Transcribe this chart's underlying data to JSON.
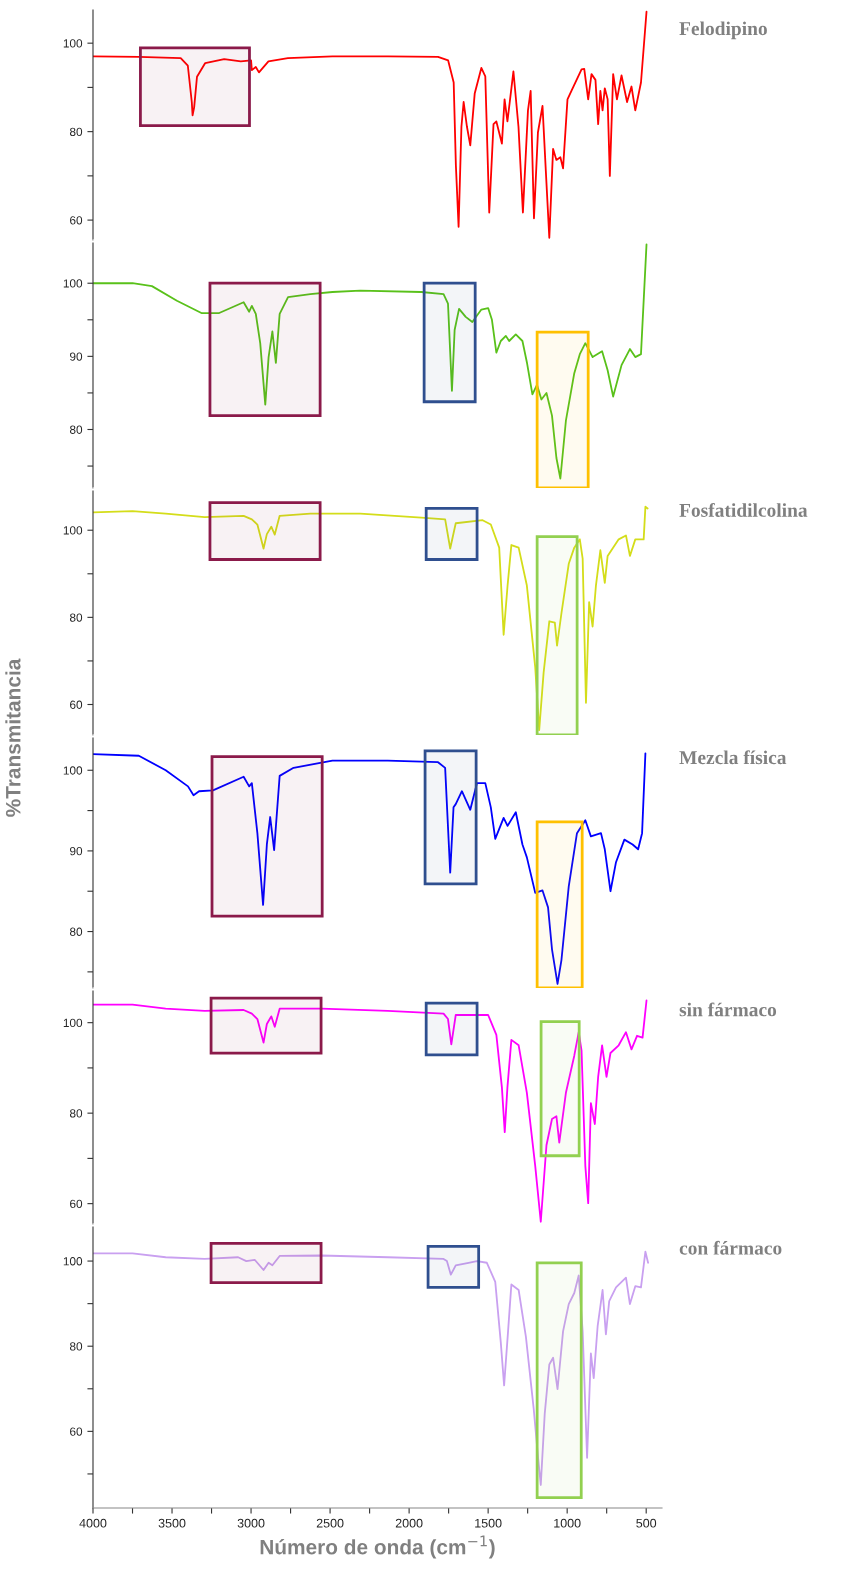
{
  "chart_data": [
    {
      "type": "line",
      "xlim": [
        4000,
        400
      ],
      "ylim": [
        55.5,
        107.5
      ],
      "yticks": [
        {
          "value": 60,
          "label": "60"
        },
        {
          "value": 70,
          "label": null
        },
        {
          "value": 80,
          "label": "80"
        },
        {
          "value": 90,
          "label": null
        },
        {
          "value": 100,
          "label": "100"
        }
      ],
      "tick_labels": "y",
      "series": [
        {
          "name": "Felodipino",
          "color": "#ff0000",
          "x": [
            4000,
            3710,
            3445,
            3400,
            3375,
            3370,
            3360,
            3342,
            3290,
            3170,
            3065,
            3000,
            2995,
            2970,
            2950,
            2890,
            2767,
            2485,
            2135,
            1817,
            1753,
            1718,
            1704,
            1687,
            1669,
            1655,
            1634,
            1613,
            1585,
            1543,
            1518,
            1493,
            1466,
            1448,
            1413,
            1396,
            1378,
            1340,
            1308,
            1280,
            1248,
            1231,
            1210,
            1185,
            1156,
            1135,
            1113,
            1089,
            1068,
            1043,
            1026,
            998,
            973,
            909,
            892,
            867,
            846,
            821,
            804,
            790,
            776,
            762,
            744,
            730,
            709,
            685,
            656,
            621,
            593,
            569,
            533,
            498
          ],
          "values": [
            97.0,
            96.9,
            96.6,
            94.9,
            86.7,
            83.7,
            85.5,
            92.4,
            95.5,
            96.4,
            95.9,
            96.1,
            93.9,
            94.6,
            93.4,
            95.9,
            96.6,
            97.0,
            97.0,
            96.9,
            96.1,
            91.1,
            72.3,
            58.5,
            81.1,
            86.7,
            81.1,
            76.9,
            88.6,
            94.4,
            92.5,
            61.7,
            81.7,
            82.3,
            77.3,
            87.3,
            82.3,
            93.6,
            81.1,
            61.7,
            84.8,
            89.2,
            60.4,
            79.8,
            85.8,
            71.1,
            56.0,
            76.1,
            73.6,
            74.2,
            71.7,
            87.3,
            89.2,
            94.1,
            94.2,
            87.3,
            93.0,
            91.7,
            81.7,
            89.2,
            84.8,
            89.8,
            87.3,
            70.0,
            93.0,
            87.3,
            92.7,
            86.7,
            90.2,
            84.8,
            91.1,
            107.1
          ]
        }
      ],
      "bands": [
        {
          "axis": "x",
          "from": 3700,
          "to": 3010,
          "color": "#8b1a4a"
        }
      ]
    },
    {
      "type": "line",
      "xlim": [
        4000,
        400
      ],
      "ylim": [
        72,
        105.5
      ],
      "yticks": [
        {
          "value": 75,
          "label": null
        },
        {
          "value": 80,
          "label": "80"
        },
        {
          "value": 85,
          "label": null
        },
        {
          "value": 90,
          "label": "90"
        },
        {
          "value": 95,
          "label": null
        },
        {
          "value": 100,
          "label": "100"
        }
      ],
      "tick_labels": "y",
      "series": [
        {
          "color": "#59c11a",
          "x": [
            4000,
            3750,
            3627,
            3469,
            3311,
            3205,
            3047,
            3012,
            2995,
            2970,
            2942,
            2910,
            2889,
            2865,
            2843,
            2819,
            2766,
            2625,
            2485,
            2309,
            1923,
            1782,
            1754,
            1729,
            1712,
            1684,
            1642,
            1600,
            1543,
            1500,
            1476,
            1448,
            1420,
            1388,
            1367,
            1325,
            1283,
            1255,
            1220,
            1191,
            1163,
            1131,
            1096,
            1068,
            1043,
            1008,
            955,
            920,
            885,
            839,
            779,
            744,
            709,
            656,
            603,
            569,
            533,
            498
          ],
          "values": [
            100,
            100,
            99.6,
            97.6,
            95.9,
            95.9,
            97.4,
            96.1,
            96.9,
            95.8,
            91.8,
            83.4,
            89.9,
            93.4,
            89.1,
            95.8,
            98.1,
            98.5,
            98.8,
            99.0,
            98.8,
            98.5,
            97.2,
            85.3,
            93.6,
            96.5,
            95.4,
            94.7,
            96.4,
            96.6,
            95.0,
            90.5,
            92.1,
            92.8,
            92.1,
            93.0,
            92.1,
            89.2,
            84.8,
            86.1,
            84.1,
            85.0,
            81.9,
            76.1,
            73.3,
            81.2,
            87.7,
            90.3,
            91.8,
            89.9,
            90.7,
            88.1,
            84.5,
            88.8,
            91.0,
            89.9,
            90.3,
            105.3
          ]
        }
      ],
      "bands": [
        {
          "axis": "x",
          "from": 3260,
          "to": 2563,
          "color": "#8b1a4a"
        },
        {
          "axis": "x",
          "from": 1905,
          "to": 1582,
          "color": "#2f4f8f"
        },
        {
          "axis": "x",
          "from": 1190,
          "to": 867,
          "color": "#ffc000"
        }
      ]
    },
    {
      "type": "line",
      "xlim": [
        4000,
        400
      ],
      "ylim": [
        53,
        109
      ],
      "yticks": [
        {
          "value": 60,
          "label": "60"
        },
        {
          "value": 70,
          "label": null
        },
        {
          "value": 80,
          "label": "80"
        },
        {
          "value": 90,
          "label": null
        },
        {
          "value": 100,
          "label": "100"
        }
      ],
      "tick_labels": "y",
      "series": [
        {
          "name": "Fosfatidilcolina",
          "color": "#d4dd1a",
          "x": [
            4000,
            3750,
            3540,
            3294,
            3047,
            2995,
            2960,
            2921,
            2900,
            2872,
            2850,
            2819,
            2625,
            2309,
            1923,
            1772,
            1740,
            1705,
            1535,
            1483,
            1430,
            1402,
            1377,
            1353,
            1307,
            1255,
            1202,
            1177,
            1149,
            1113,
            1078,
            1064,
            1036,
            990,
            955,
            920,
            902,
            881,
            861,
            839,
            818,
            790,
            762,
            744,
            674,
            628,
            603,
            569,
            516,
            505,
            491
          ],
          "values": [
            104.1,
            104.4,
            103.8,
            103.0,
            103.3,
            102.5,
            101.3,
            95.8,
            99.1,
            100.8,
            99.0,
            103.3,
            103.8,
            103.8,
            102.9,
            102.5,
            95.8,
            101.6,
            102.3,
            101.3,
            96.0,
            76.0,
            87.3,
            96.6,
            96.0,
            87.3,
            68.5,
            54.1,
            67.3,
            79.1,
            78.8,
            73.5,
            81.0,
            92.3,
            96.0,
            97.9,
            93.5,
            60.4,
            83.5,
            77.9,
            87.3,
            95.4,
            87.9,
            94.1,
            97.9,
            98.8,
            94.1,
            97.9,
            97.9,
            105.4,
            105.0
          ]
        }
      ],
      "bands": [
        {
          "axis": "x",
          "from": 3260,
          "to": 2563,
          "color": "#8b1a4a"
        },
        {
          "axis": "x",
          "from": 1892,
          "to": 1570,
          "color": "#2f4f8f"
        },
        {
          "axis": "x",
          "from": 1190,
          "to": 937,
          "color": "#92d050"
        }
      ]
    },
    {
      "type": "line",
      "xlim": [
        4000,
        400
      ],
      "ylim": [
        73,
        104
      ],
      "yticks": [
        {
          "value": 75,
          "label": null
        },
        {
          "value": 80,
          "label": "80"
        },
        {
          "value": 85,
          "label": null
        },
        {
          "value": 90,
          "label": "90"
        },
        {
          "value": 95,
          "label": null
        },
        {
          "value": 100,
          "label": "100"
        }
      ],
      "tick_labels": "y",
      "ylabel": "%Transmitancia",
      "series": [
        {
          "name": "Mezcla física",
          "color": "#0000ff",
          "x": [
            4000,
            3710,
            3540,
            3399,
            3364,
            3329,
            3241,
            3047,
            3012,
            2995,
            2960,
            2924,
            2900,
            2879,
            2854,
            2819,
            2731,
            2485,
            2135,
            1817,
            1772,
            1740,
            1719,
            1705,
            1666,
            1613,
            1571,
            1518,
            1483,
            1455,
            1402,
            1377,
            1325,
            1283,
            1255,
            1202,
            1156,
            1121,
            1096,
            1061,
            1036,
            990,
            938,
            885,
            850,
            786,
            762,
            726,
            691,
            638,
            586,
            551,
            526,
            505
          ],
          "values": [
            102.0,
            101.8,
            100.0,
            98.0,
            96.9,
            97.4,
            97.5,
            99.2,
            98.0,
            98.4,
            92.2,
            83.3,
            90.8,
            94.2,
            90.1,
            99.3,
            100.3,
            101.2,
            101.2,
            101.0,
            100.3,
            87.3,
            95.4,
            95.8,
            97.4,
            95.1,
            98.4,
            98.4,
            95.4,
            91.5,
            94.1,
            93.1,
            94.8,
            90.8,
            89.2,
            84.8,
            85.1,
            83.0,
            77.8,
            73.5,
            76.5,
            85.6,
            92.2,
            93.8,
            91.8,
            92.2,
            90.2,
            85.0,
            88.6,
            91.4,
            90.8,
            90.2,
            92.2,
            102.1
          ]
        }
      ],
      "bands": [
        {
          "axis": "x",
          "from": 3247,
          "to": 2550,
          "color": "#8b1a4a"
        },
        {
          "axis": "x",
          "from": 1899,
          "to": 1576,
          "color": "#2f4f8f"
        },
        {
          "axis": "x",
          "from": 1190,
          "to": 905,
          "color": "#ffc000"
        }
      ]
    },
    {
      "type": "line",
      "xlim": [
        4000,
        400
      ],
      "ylim": [
        55.5,
        107
      ],
      "yticks": [
        {
          "value": 60,
          "label": "60"
        },
        {
          "value": 70,
          "label": null
        },
        {
          "value": 80,
          "label": "80"
        },
        {
          "value": 90,
          "label": null
        },
        {
          "value": 100,
          "label": "100"
        }
      ],
      "tick_labels": "y",
      "series": [
        {
          "name": "sin fármaco",
          "color": "#ff00ff",
          "x": [
            4000,
            3750,
            3540,
            3294,
            3047,
            2995,
            2960,
            2921,
            2900,
            2872,
            2850,
            2819,
            2555,
            2135,
            1782,
            1754,
            1733,
            1705,
            1500,
            1448,
            1413,
            1395,
            1378,
            1353,
            1307,
            1255,
            1202,
            1167,
            1131,
            1096,
            1068,
            1050,
            1008,
            955,
            927,
            909,
            885,
            867,
            850,
            825,
            804,
            779,
            751,
            726,
            674,
            628,
            593,
            558,
            523,
            498
          ],
          "values": [
            104.0,
            104.0,
            103.1,
            102.6,
            102.8,
            102.0,
            100.8,
            95.6,
            99.7,
            101.4,
            99.1,
            103.1,
            103.1,
            102.6,
            102.0,
            100.8,
            95.2,
            101.7,
            101.7,
            97.3,
            85.7,
            75.8,
            85.7,
            96.2,
            95.0,
            84.5,
            68.3,
            56.0,
            72.9,
            78.7,
            79.3,
            73.5,
            84.5,
            92.7,
            97.9,
            93.8,
            68.3,
            60.1,
            82.2,
            77.6,
            88.0,
            95.0,
            88.0,
            93.3,
            95.0,
            97.9,
            94.1,
            97.1,
            96.7,
            104.9
          ]
        }
      ],
      "bands": [
        {
          "axis": "x",
          "from": 3253,
          "to": 2557,
          "color": "#8b1a4a"
        },
        {
          "axis": "x",
          "from": 1892,
          "to": 1570,
          "color": "#2f4f8f"
        },
        {
          "axis": "x",
          "from": 1165,
          "to": 924,
          "color": "#92d050"
        }
      ]
    },
    {
      "type": "line",
      "xlim": [
        4000,
        400
      ],
      "ylim": [
        42,
        108
      ],
      "yticks": [
        {
          "value": 50,
          "label": null
        },
        {
          "value": 60,
          "label": "60"
        },
        {
          "value": 70,
          "label": null
        },
        {
          "value": 80,
          "label": "80"
        },
        {
          "value": 90,
          "label": null
        },
        {
          "value": 100,
          "label": "100"
        }
      ],
      "xticks": [
        4000,
        {
          "value": 3750,
          "label": null
        },
        3500,
        {
          "value": 3250,
          "label": null
        },
        3000,
        {
          "value": 2750,
          "label": null
        },
        2500,
        {
          "value": 2250,
          "label": null
        },
        2000,
        {
          "value": 1750,
          "label": null
        },
        1500,
        {
          "value": 1250,
          "label": null
        },
        1000,
        {
          "value": 750,
          "label": null
        },
        500
      ],
      "xlabel": "Número de onda (cm$^{−1}$)",
      "series": [
        {
          "name": "con fármaco",
          "color": "#c9a0f0",
          "x": [
            4000,
            3750,
            3540,
            3294,
            3082,
            3030,
            2977,
            2921,
            2889,
            2865,
            2819,
            2555,
            2135,
            1782,
            1761,
            1736,
            1705,
            1624,
            1571,
            1508,
            1455,
            1420,
            1399,
            1374,
            1353,
            1307,
            1261,
            1212,
            1184,
            1167,
            1142,
            1113,
            1089,
            1061,
            1026,
            990,
            955,
            927,
            902,
            874,
            850,
            832,
            807,
            776,
            755,
            734,
            691,
            628,
            603,
            569,
            533,
            505,
            488
          ],
          "values": [
            101.8,
            101.8,
            100.9,
            100.5,
            100.9,
            100.0,
            100.3,
            97.9,
            99.6,
            99.0,
            101.2,
            101.3,
            100.9,
            100.5,
            100.0,
            96.8,
            99.0,
            99.6,
            100.0,
            99.6,
            95.1,
            80.9,
            70.8,
            83.5,
            94.5,
            93.2,
            82.2,
            65.4,
            53.8,
            47.4,
            64.1,
            75.7,
            77.3,
            69.9,
            83.5,
            89.9,
            92.5,
            96.6,
            83.5,
            53.8,
            78.3,
            72.5,
            84.8,
            93.2,
            82.8,
            90.6,
            93.8,
            96.1,
            89.9,
            94.1,
            93.8,
            102.2,
            99.6
          ]
        }
      ],
      "bands": [
        {
          "axis": "x",
          "from": 3253,
          "to": 2557,
          "color": "#8b1a4a"
        },
        {
          "axis": "x",
          "from": 1880,
          "to": 1560,
          "color": "#2f4f8f"
        },
        {
          "axis": "x",
          "from": 1190,
          "to": 911,
          "color": "#92d050"
        }
      ]
    }
  ]
}
